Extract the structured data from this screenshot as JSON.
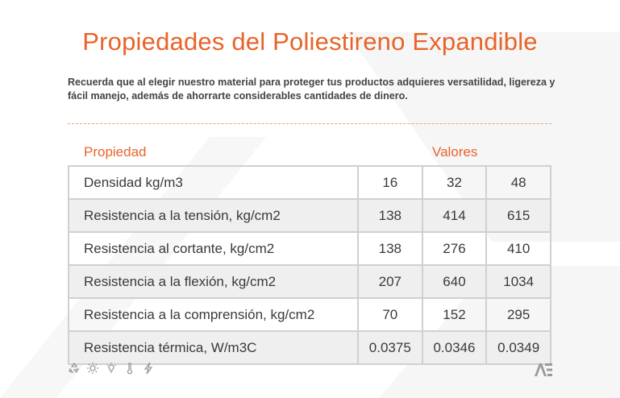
{
  "page": {
    "title": "Propiedades del Poliestireno Expandible",
    "subtitle": "Recuerda que al elegir nuestro material para proteger tus productos adquieres versatilidad, ligereza y fácil manejo, además de ahorrarte considerables cantidades de dinero."
  },
  "table": {
    "header_property": "Propiedad",
    "header_values": "Valores",
    "rows": [
      {
        "name": "Densidad kg/m3",
        "v1": "16",
        "v2": "32",
        "v3": "48"
      },
      {
        "name": "Resistencia a la tensión, kg/cm2",
        "v1": "138",
        "v2": "414",
        "v3": "615"
      },
      {
        "name": "Resistencia al cortante, kg/cm2",
        "v1": "138",
        "v2": "276",
        "v3": "410"
      },
      {
        "name": "Resistencia a la flexión, kg/cm2",
        "v1": "207",
        "v2": "640",
        "v3": "1034"
      },
      {
        "name": "Resistencia a la comprensión, kg/cm2",
        "v1": "70",
        "v2": "152",
        "v3": "295"
      },
      {
        "name": "Resistencia térmica, W/m3C",
        "v1": "0.0375",
        "v2": "0.0346",
        "v3": "0.0349"
      }
    ]
  },
  "footer": {
    "icons": [
      "recycle-icon",
      "sun-icon",
      "lightbulb-icon",
      "thermometer-icon",
      "lightning-icon"
    ],
    "logo_icon": "brand-logo-icon"
  },
  "colors": {
    "accent": "#e8642a",
    "text": "#3a3a3a",
    "row_shade": "#efefef",
    "border": "#d0d0d0"
  }
}
